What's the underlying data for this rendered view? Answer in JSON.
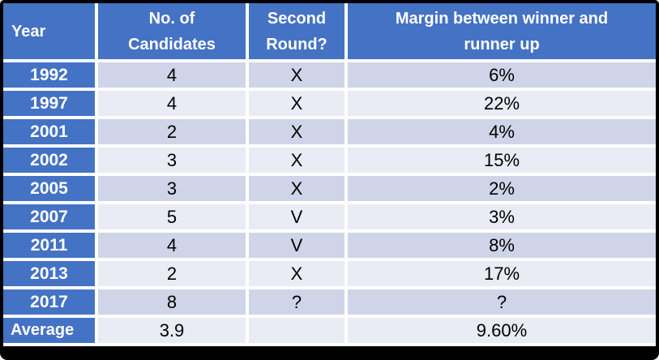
{
  "colors": {
    "frame": "#000000",
    "divider": "#ffffff",
    "header_bg": "#4472C4",
    "header_text": "#ffffff",
    "band_dark": "#CFD4E8",
    "band_light": "#E9EBF5",
    "cell_text": "#000000"
  },
  "display": {
    "headers": [
      "Year",
      "No. of\nCandidates",
      "Second\nRound?",
      "Margin between winner and\nrunner up"
    ]
  },
  "chart_data": {
    "type": "table",
    "columns": [
      "Year",
      "No. of Candidates",
      "Second Round?",
      "Margin between winner and runner up"
    ],
    "rows": [
      [
        "1992",
        "4",
        "X",
        "6%"
      ],
      [
        "1997",
        "4",
        "X",
        "22%"
      ],
      [
        "2001",
        "2",
        "X",
        "4%"
      ],
      [
        "2002",
        "3",
        "X",
        "15%"
      ],
      [
        "2005",
        "3",
        "X",
        "2%"
      ],
      [
        "2007",
        "5",
        "V",
        "3%"
      ],
      [
        "2011",
        "4",
        "V",
        "8%"
      ],
      [
        "2013",
        "2",
        "X",
        "17%"
      ],
      [
        "2017",
        "8",
        "?",
        "?"
      ]
    ],
    "footer": [
      "Average",
      "3.9",
      "",
      "9.60%"
    ]
  }
}
